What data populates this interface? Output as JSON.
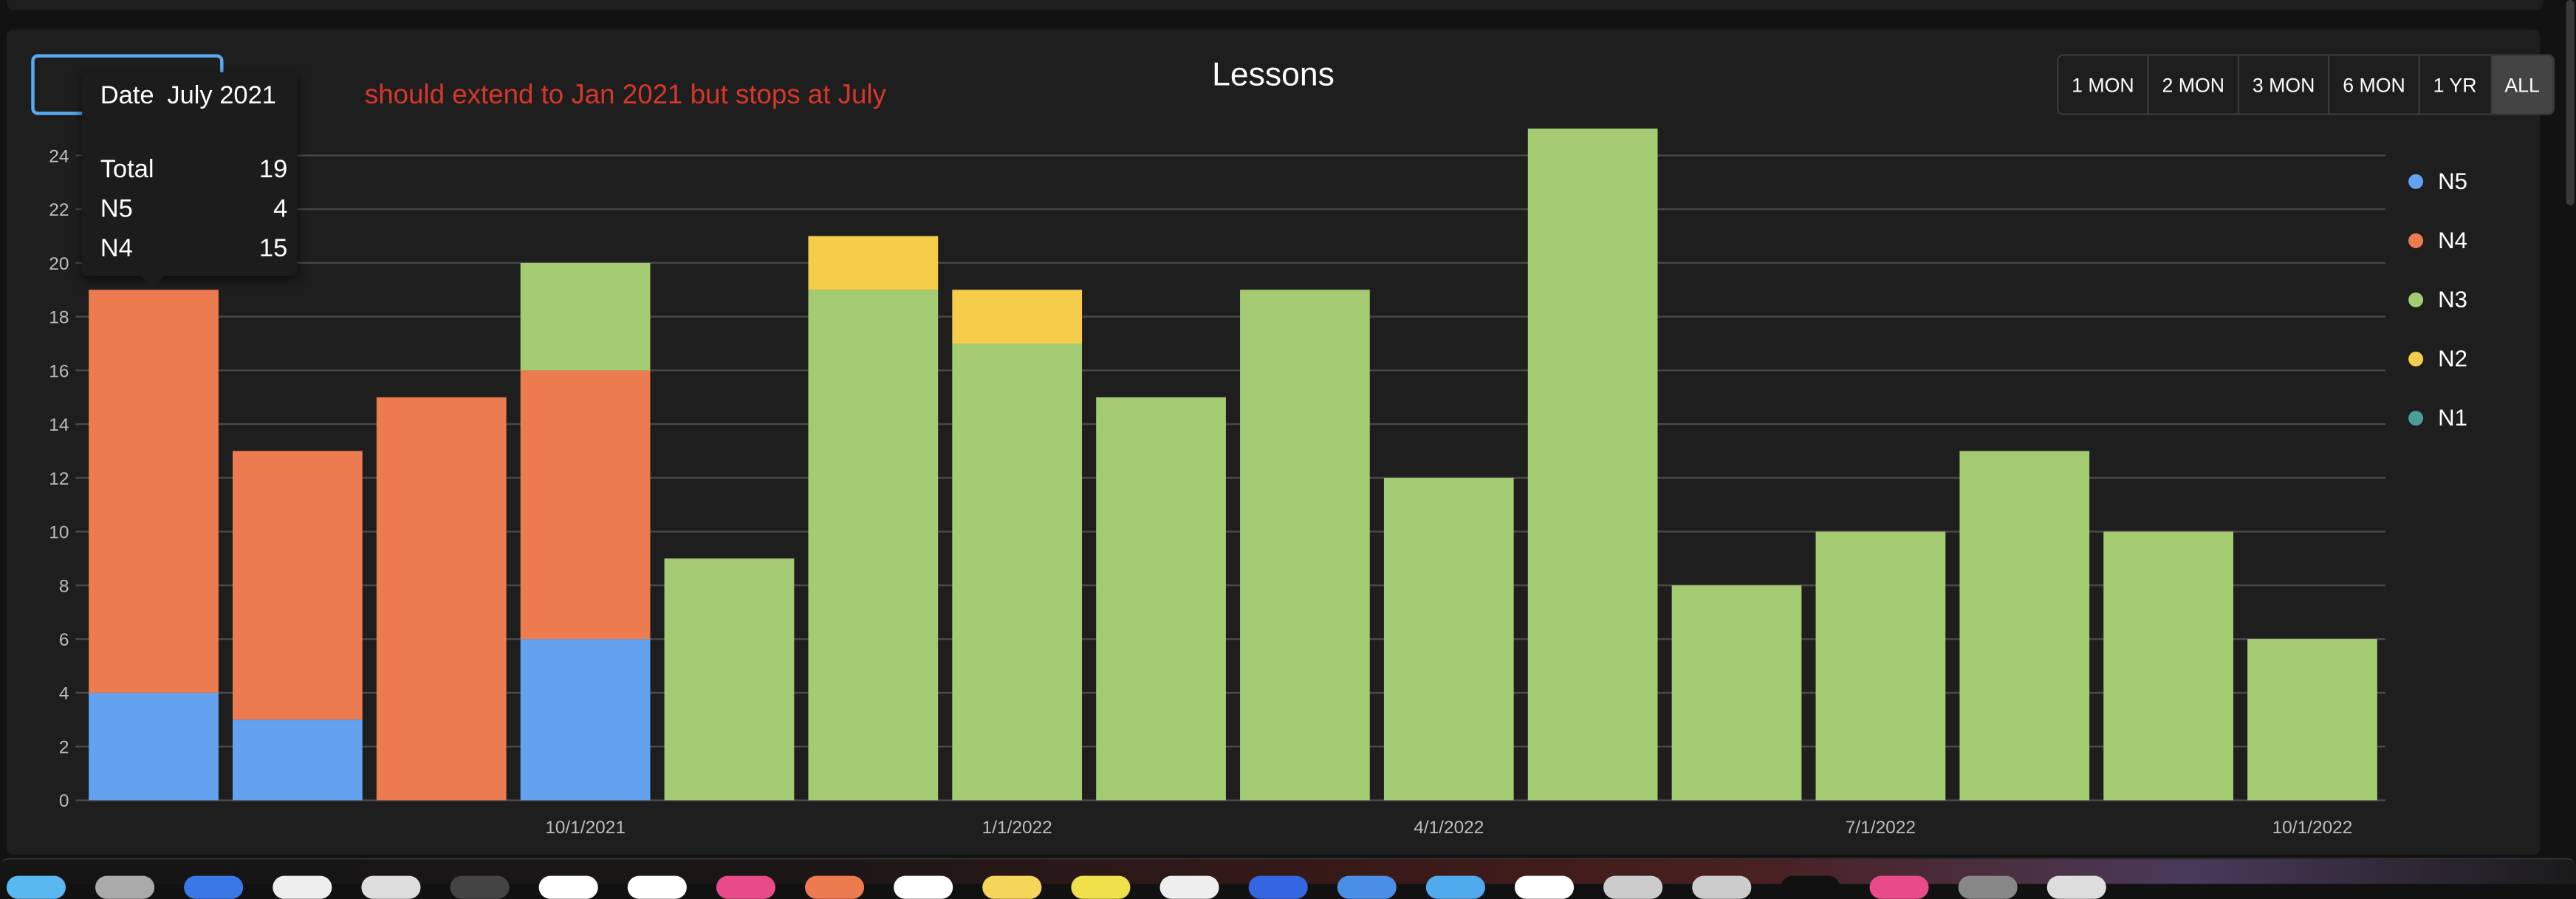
{
  "header": {
    "title": "Lessons",
    "annotation": "should extend to Jan 2021 but stops at July"
  },
  "date_filter": {
    "label": "Date",
    "value": "July 2021"
  },
  "tooltip": {
    "date_label": "Date",
    "date_value": "July 2021",
    "rows": [
      {
        "label": "Total",
        "value": "19"
      },
      {
        "label": "N5",
        "value": "4"
      },
      {
        "label": "N4",
        "value": "15"
      }
    ]
  },
  "range_buttons": [
    "1 MON",
    "2 MON",
    "3 MON",
    "6 MON",
    "1 YR",
    "ALL"
  ],
  "range_selected": "ALL",
  "chart_data": {
    "type": "bar",
    "stacked": true,
    "title": "Lessons",
    "categories": [
      "2021-07",
      "2021-08",
      "2021-09",
      "2021-10",
      "2021-11",
      "2021-12",
      "2022-01",
      "2022-02",
      "2022-03",
      "2022-04",
      "2022-05",
      "2022-06",
      "2022-07",
      "2022-08",
      "2022-09",
      "2022-10"
    ],
    "x_tick_labels": [
      {
        "category": "2021-10",
        "label": "10/1/2021"
      },
      {
        "category": "2022-01",
        "label": "1/1/2022"
      },
      {
        "category": "2022-04",
        "label": "4/1/2022"
      },
      {
        "category": "2022-07",
        "label": "7/1/2022"
      },
      {
        "category": "2022-10",
        "label": "10/1/2022"
      }
    ],
    "series": [
      {
        "name": "N5",
        "color": "#62a2ef",
        "values": [
          4,
          3,
          0,
          6,
          0,
          0,
          0,
          0,
          0,
          0,
          0,
          0,
          0,
          0,
          0,
          0
        ]
      },
      {
        "name": "N4",
        "color": "#ed7b50",
        "values": [
          15,
          10,
          15,
          10,
          0,
          0,
          0,
          0,
          0,
          0,
          0,
          0,
          0,
          0,
          0,
          0
        ]
      },
      {
        "name": "N3",
        "color": "#a4cb72",
        "values": [
          0,
          0,
          0,
          4,
          9,
          19,
          17,
          15,
          19,
          12,
          25,
          8,
          10,
          13,
          10,
          6
        ]
      },
      {
        "name": "N2",
        "color": "#f6cc4b",
        "values": [
          0,
          0,
          0,
          0,
          0,
          2,
          2,
          0,
          0,
          0,
          0,
          0,
          0,
          0,
          0,
          0
        ]
      },
      {
        "name": "N1",
        "color": "#4ba096",
        "values": [
          0,
          0,
          0,
          0,
          0,
          0,
          0,
          0,
          0,
          0,
          0,
          0,
          0,
          0,
          0,
          0
        ]
      }
    ],
    "yticks": [
      0,
      2,
      4,
      6,
      8,
      10,
      12,
      14,
      16,
      18,
      20,
      22,
      24
    ],
    "ylim": [
      0,
      25
    ],
    "grid": true,
    "legend_position": "right"
  }
}
